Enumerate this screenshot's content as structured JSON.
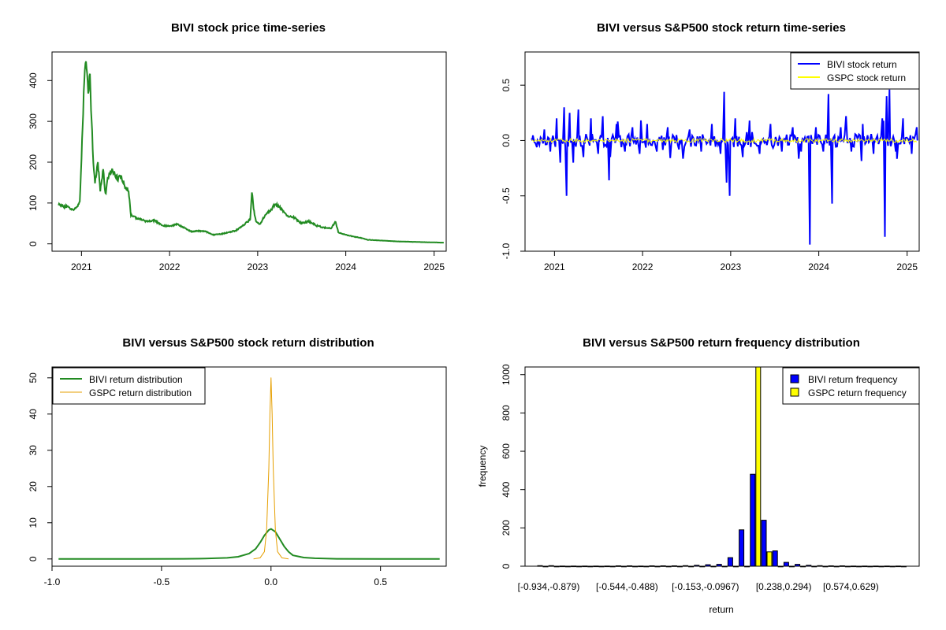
{
  "chart_data": [
    {
      "type": "line",
      "title": "BIVI stock price time-series",
      "xlabel": "",
      "ylabel": "",
      "x_ticks": [
        "2021",
        "2022",
        "2023",
        "2024",
        "2025"
      ],
      "y_ticks": [
        "0",
        "100",
        "200",
        "300",
        "400"
      ],
      "xlim": [
        "2020-09-01",
        "2025-02-20"
      ],
      "ylim": [
        -18,
        470
      ],
      "series": [
        {
          "color": "#228B22",
          "x": [
            "2020-09-28",
            "2020-10-15",
            "2020-11-05",
            "2020-11-25",
            "2020-12-10",
            "2020-12-25",
            "2021-01-08",
            "2021-01-15",
            "2021-01-22",
            "2021-01-29",
            "2021-02-05",
            "2021-02-12",
            "2021-02-19",
            "2021-02-26",
            "2021-03-10",
            "2021-03-20",
            "2021-04-01",
            "2021-04-10",
            "2021-04-20",
            "2021-05-01",
            "2021-05-15",
            "2021-06-01",
            "2021-06-15",
            "2021-07-01",
            "2021-07-15",
            "2021-07-25",
            "2021-08-10",
            "2021-09-01",
            "2021-10-01",
            "2021-11-01",
            "2021-12-01",
            "2022-01-01",
            "2022-02-01",
            "2022-03-01",
            "2022-04-01",
            "2022-05-01",
            "2022-06-01",
            "2022-07-01",
            "2022-08-01",
            "2022-09-01",
            "2022-10-01",
            "2022-11-01",
            "2022-12-01",
            "2022-12-08",
            "2022-12-15",
            "2022-12-25",
            "2023-01-10",
            "2023-02-01",
            "2023-03-01",
            "2023-03-15",
            "2023-04-01",
            "2023-05-01",
            "2023-06-01",
            "2023-07-01",
            "2023-08-01",
            "2023-09-01",
            "2023-10-01",
            "2023-11-01",
            "2023-11-20",
            "2023-12-01",
            "2024-01-01",
            "2024-02-01",
            "2024-03-01",
            "2024-04-01",
            "2024-06-01",
            "2024-08-01",
            "2024-10-01",
            "2024-12-01",
            "2025-02-10"
          ],
          "values": [
            97,
            92,
            90,
            82,
            90,
            100,
            330,
            420,
            445,
            380,
            405,
            300,
            200,
            150,
            200,
            130,
            180,
            120,
            160,
            180,
            175,
            160,
            165,
            140,
            130,
            70,
            65,
            60,
            55,
            57,
            45,
            43,
            48,
            40,
            30,
            32,
            30,
            22,
            24,
            28,
            32,
            45,
            60,
            130,
            85,
            55,
            48,
            70,
            85,
            100,
            90,
            70,
            65,
            50,
            55,
            45,
            40,
            38,
            55,
            28,
            22,
            18,
            15,
            10,
            8,
            6,
            5,
            4,
            3
          ]
        }
      ]
    },
    {
      "type": "line",
      "title": "BIVI versus S&P500 stock return time-series",
      "xlabel": "",
      "ylabel": "",
      "x_ticks": [
        "2021",
        "2022",
        "2023",
        "2024",
        "2025"
      ],
      "y_ticks": [
        "-1.0",
        "-0.5",
        "0.0",
        "0.5"
      ],
      "xlim": [
        "2020-09-01",
        "2025-02-20"
      ],
      "ylim": [
        -1.0,
        0.8
      ],
      "legend": {
        "position": "top-right",
        "entries": [
          "BIVI stock return",
          "GSPC stock return"
        ]
      },
      "series": [
        {
          "name": "BIVI stock return",
          "color": "#0000FF",
          "x": [
            "2020-09-28",
            "2020-10-20",
            "2020-11-20",
            "2020-12-15",
            "2021-01-10",
            "2021-01-25",
            "2021-02-10",
            "2021-02-20",
            "2021-03-05",
            "2021-03-20",
            "2021-04-10",
            "2021-05-01",
            "2021-06-01",
            "2021-07-01",
            "2021-07-20",
            "2021-08-15",
            "2021-09-15",
            "2021-10-20",
            "2021-11-20",
            "2021-12-20",
            "2022-01-20",
            "2022-03-01",
            "2022-04-15",
            "2022-06-01",
            "2022-07-15",
            "2022-09-01",
            "2022-10-15",
            "2022-11-20",
            "2022-12-05",
            "2022-12-15",
            "2022-12-28",
            "2023-01-20",
            "2023-02-20",
            "2023-03-20",
            "2023-05-01",
            "2023-06-15",
            "2023-08-01",
            "2023-09-15",
            "2023-10-20",
            "2023-11-25",
            "2023-12-20",
            "2024-01-20",
            "2024-02-10",
            "2024-02-25",
            "2024-04-01",
            "2024-05-15",
            "2024-07-01",
            "2024-08-15",
            "2024-09-20",
            "2024-10-01",
            "2024-10-08",
            "2024-10-20",
            "2024-11-15",
            "2024-12-15",
            "2025-01-20",
            "2025-02-10"
          ],
          "values": [
            0.02,
            -0.06,
            0.1,
            -0.1,
            0.2,
            -0.2,
            0.3,
            -0.5,
            0.25,
            -0.2,
            0.28,
            -0.15,
            0.2,
            -0.12,
            0.22,
            -0.36,
            0.15,
            -0.1,
            0.12,
            -0.12,
            0.15,
            -0.1,
            0.12,
            -0.08,
            0.1,
            -0.1,
            0.15,
            -0.12,
            0.44,
            -0.38,
            -0.5,
            0.2,
            -0.15,
            0.18,
            -0.12,
            0.15,
            -0.1,
            0.12,
            -0.1,
            -0.94,
            0.12,
            -0.1,
            0.42,
            -0.57,
            0.12,
            -0.1,
            0.15,
            -0.12,
            0.2,
            -0.87,
            0.4,
            0.46,
            -0.1,
            0.2,
            -0.12,
            0.12
          ]
        },
        {
          "name": "GSPC stock return",
          "color": "#FFFF00",
          "x": [
            "2020-09-28",
            "2021-06-01",
            "2022-03-01",
            "2022-12-01",
            "2023-09-01",
            "2024-06-01",
            "2025-02-10"
          ],
          "values": [
            0.0,
            0.005,
            -0.005,
            0.01,
            0.0,
            0.005,
            0.0
          ]
        }
      ]
    },
    {
      "type": "line",
      "title": "BIVI versus S&P500 stock return distribution",
      "xlabel": "",
      "ylabel": "",
      "x_ticks": [
        "-1.0",
        "-0.5",
        "0.0",
        "0.5"
      ],
      "y_ticks": [
        "0",
        "10",
        "20",
        "30",
        "40",
        "50"
      ],
      "xlim": [
        -1.0,
        0.8
      ],
      "ylim": [
        -2,
        53
      ],
      "legend": {
        "position": "top-left",
        "entries": [
          "BIVI return distribution",
          "GSPC return distribution"
        ]
      },
      "series": [
        {
          "name": "BIVI return distribution",
          "color": "#228B22",
          "x": [
            -0.97,
            -0.6,
            -0.4,
            -0.3,
            -0.2,
            -0.15,
            -0.1,
            -0.07,
            -0.05,
            -0.03,
            -0.01,
            0.0,
            0.02,
            0.04,
            0.06,
            0.08,
            0.1,
            0.15,
            0.2,
            0.3,
            0.5,
            0.77
          ],
          "values": [
            0,
            0,
            0.05,
            0.1,
            0.3,
            0.6,
            1.5,
            2.8,
            4.5,
            6.5,
            8.0,
            8.3,
            7.5,
            5.5,
            3.5,
            2.0,
            1.0,
            0.4,
            0.2,
            0.05,
            0,
            0
          ]
        },
        {
          "name": "GSPC return distribution",
          "color": "#E69F00",
          "x": [
            -0.08,
            -0.05,
            -0.03,
            -0.02,
            -0.01,
            -0.005,
            0.0,
            0.005,
            0.01,
            0.02,
            0.03,
            0.05,
            0.08
          ],
          "values": [
            0,
            0.3,
            2,
            8,
            25,
            40,
            50,
            40,
            25,
            8,
            2,
            0.3,
            0
          ]
        }
      ]
    },
    {
      "type": "bar",
      "title": "BIVI versus S&P500 return frequency distribution",
      "xlabel": "return",
      "ylabel": "frequency",
      "x_tick_labels": [
        "[-0.934,-0.879)",
        "[-0.544,-0.488)",
        "[-0.153,-0.0967)",
        "[0.238,0.294)",
        "[0.574,0.629)"
      ],
      "y_ticks": [
        "0",
        "200",
        "400",
        "600",
        "800",
        "1000"
      ],
      "ylim": [
        0,
        1040
      ],
      "legend": {
        "position": "top-right",
        "entries": [
          "BIVI return frequency",
          "GSPC return frequency"
        ]
      },
      "series": [
        {
          "name": "BIVI return frequency",
          "color": "#0000FF",
          "values": [
            3,
            3,
            1,
            1,
            1,
            1,
            1,
            2,
            2,
            1,
            2,
            2,
            2,
            3,
            5,
            8,
            10,
            45,
            190,
            480,
            240,
            80,
            20,
            10,
            5,
            3,
            2,
            2,
            1,
            1,
            1,
            1,
            1
          ]
        },
        {
          "name": "GSPC return frequency",
          "color": "#FFFF00",
          "values": [
            0,
            0,
            0,
            0,
            0,
            0,
            0,
            0,
            0,
            0,
            0,
            0,
            0,
            0,
            0,
            0,
            0,
            0,
            0,
            1040,
            75,
            0,
            0,
            0,
            0,
            0,
            0,
            0,
            0,
            0,
            0,
            0,
            0
          ]
        }
      ]
    }
  ]
}
